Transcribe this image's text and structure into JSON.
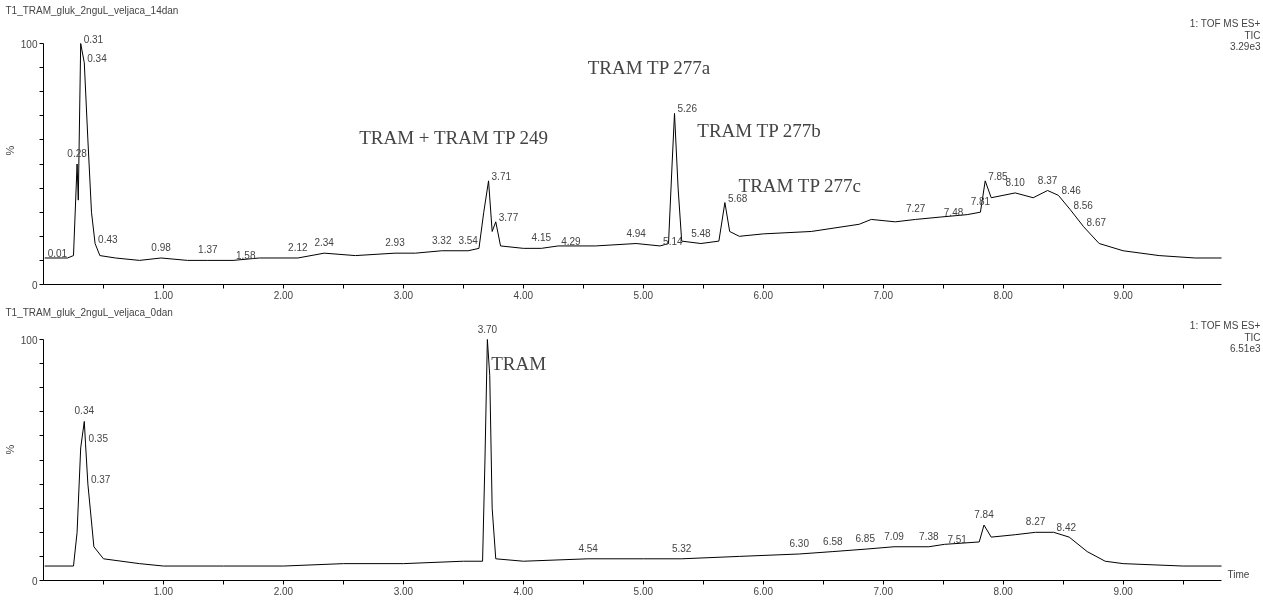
{
  "chart_data": [
    {
      "type": "line",
      "title": "T1_TRAM_gluk_2nguL_veljaca_14dan",
      "ylabel": "%",
      "grid": false,
      "xlim": [
        0,
        9.82
      ],
      "ylim": [
        0,
        100
      ],
      "xticks": [
        {
          "value": 0.5,
          "label": null
        },
        {
          "value": 1,
          "label": "1.00"
        },
        {
          "value": 1.5,
          "label": null
        },
        {
          "value": 2,
          "label": "2.00"
        },
        {
          "value": 2.5,
          "label": null
        },
        {
          "value": 3,
          "label": "3.00"
        },
        {
          "value": 3.5,
          "label": null
        },
        {
          "value": 4,
          "label": "4.00"
        },
        {
          "value": 4.5,
          "label": null
        },
        {
          "value": 5,
          "label": "5.00"
        },
        {
          "value": 5.5,
          "label": null
        },
        {
          "value": 6,
          "label": "6.00"
        },
        {
          "value": 6.5,
          "label": null
        },
        {
          "value": 7,
          "label": "7.00"
        },
        {
          "value": 7.5,
          "label": null
        },
        {
          "value": 8,
          "label": "8.00"
        },
        {
          "value": 8.5,
          "label": null
        },
        {
          "value": 9,
          "label": "9.00"
        },
        {
          "value": 9.5,
          "label": null
        }
      ],
      "yticks": [
        0,
        {
          "value": 10,
          "label": null
        },
        {
          "value": 20,
          "label": null
        },
        {
          "value": 30,
          "label": null
        },
        {
          "value": 40,
          "label": null
        },
        {
          "value": 50,
          "label": null
        },
        {
          "value": 60,
          "label": null
        },
        {
          "value": 70,
          "label": null
        },
        {
          "value": 80,
          "label": null
        },
        {
          "value": 90,
          "label": null
        },
        100
      ],
      "series": [
        {
          "color": "#000000",
          "x": [
            0.01,
            0.2,
            0.25,
            0.28,
            0.29,
            0.31,
            0.34,
            0.37,
            0.4,
            0.43,
            0.47,
            0.6,
            0.8,
            0.98,
            1.2,
            1.37,
            1.58,
            1.8,
            2.12,
            2.34,
            2.6,
            2.93,
            3.1,
            3.32,
            3.54,
            3.63,
            3.67,
            3.71,
            3.74,
            3.77,
            3.81,
            4.0,
            4.15,
            4.29,
            4.6,
            4.94,
            5.14,
            5.21,
            5.24,
            5.26,
            5.29,
            5.32,
            5.48,
            5.63,
            5.68,
            5.72,
            5.8,
            6.0,
            6.4,
            6.8,
            6.9,
            7.1,
            7.27,
            7.48,
            7.7,
            7.81,
            7.85,
            7.9,
            8.1,
            8.25,
            8.37,
            8.46,
            8.56,
            8.67,
            8.8,
            9.0,
            9.3,
            9.6,
            9.82
          ],
          "values": [
            11,
            11,
            12,
            50,
            35,
            100,
            92,
            60,
            30,
            17,
            12,
            11,
            10,
            11,
            10,
            10,
            10,
            11,
            11,
            13,
            12,
            13,
            13,
            14,
            14,
            15,
            30,
            43,
            22,
            26,
            16,
            15,
            15,
            16,
            16,
            17,
            16,
            17,
            50,
            71,
            40,
            18,
            17,
            18,
            34,
            22,
            20,
            21,
            22,
            25,
            27,
            26,
            27,
            28,
            29,
            30,
            43,
            36,
            38,
            36,
            39,
            37,
            31,
            24,
            17,
            14,
            12,
            11,
            11
          ]
        }
      ],
      "annotations": [
        "1: TOF MS ES+",
        "TIC",
        "3.29e3",
        "TRAM TP 277a",
        "TRAM + TRAM TP 249",
        "TRAM TP 277b",
        "TRAM TP 277c",
        {
          "text": "0.01",
          "x": 0.01,
          "y": 11
        },
        {
          "text": "0.28",
          "x": 0.28,
          "y": 50
        },
        {
          "text": "0.31",
          "x": 0.31,
          "y": 100
        },
        {
          "text": "0.34",
          "x": 0.34,
          "y": 92
        },
        {
          "text": "0.43",
          "x": 0.43,
          "y": 17
        },
        {
          "text": "0.98",
          "x": 0.98,
          "y": 11
        },
        {
          "text": "1.37",
          "x": 1.37,
          "y": 10
        },
        {
          "text": "1.58",
          "x": 1.58,
          "y": 10
        },
        {
          "text": "2.12",
          "x": 2.12,
          "y": 11
        },
        {
          "text": "2.34",
          "x": 2.34,
          "y": 13
        },
        {
          "text": "2.93",
          "x": 2.93,
          "y": 13
        },
        {
          "text": "3.32",
          "x": 3.32,
          "y": 14
        },
        {
          "text": "3.54",
          "x": 3.54,
          "y": 14
        },
        {
          "text": "3.71",
          "x": 3.71,
          "y": 43
        },
        {
          "text": "3.77",
          "x": 3.77,
          "y": 26
        },
        {
          "text": "4.15",
          "x": 4.15,
          "y": 15
        },
        {
          "text": "4.29",
          "x": 4.29,
          "y": 16
        },
        {
          "text": "4.94",
          "x": 4.94,
          "y": 17
        },
        {
          "text": "5.14",
          "x": 5.14,
          "y": 16
        },
        {
          "text": "5.26",
          "x": 5.26,
          "y": 71
        },
        {
          "text": "5.48",
          "x": 5.48,
          "y": 17
        },
        {
          "text": "5.68",
          "x": 5.68,
          "y": 34
        },
        {
          "text": "7.27",
          "x": 7.27,
          "y": 27
        },
        {
          "text": "7.48",
          "x": 7.48,
          "y": 28
        },
        {
          "text": "7.81",
          "x": 7.81,
          "y": 30
        },
        {
          "text": "7.85",
          "x": 7.85,
          "y": 43
        },
        {
          "text": "8.10",
          "x": 8.1,
          "y": 38
        },
        {
          "text": "8.37",
          "x": 8.37,
          "y": 39
        },
        {
          "text": "8.46",
          "x": 8.46,
          "y": 37
        },
        {
          "text": "8.56",
          "x": 8.56,
          "y": 31
        },
        {
          "text": "8.67",
          "x": 8.67,
          "y": 24
        }
      ]
    },
    {
      "type": "line",
      "title": "T1_TRAM_gluk_2nguL_veljaca_0dan",
      "ylabel": "%",
      "xlabel": "Time",
      "grid": false,
      "xlim": [
        0,
        9.82
      ],
      "ylim": [
        0,
        100
      ],
      "xticks": [
        {
          "value": 0.5,
          "label": null
        },
        {
          "value": 1,
          "label": "1.00"
        },
        {
          "value": 1.5,
          "label": null
        },
        {
          "value": 2,
          "label": "2.00"
        },
        {
          "value": 2.5,
          "label": null
        },
        {
          "value": 3,
          "label": "3.00"
        },
        {
          "value": 3.5,
          "label": null
        },
        {
          "value": 4,
          "label": "4.00"
        },
        {
          "value": 4.5,
          "label": null
        },
        {
          "value": 5,
          "label": "5.00"
        },
        {
          "value": 5.5,
          "label": null
        },
        {
          "value": 6,
          "label": "6.00"
        },
        {
          "value": 6.5,
          "label": null
        },
        {
          "value": 7,
          "label": "7.00"
        },
        {
          "value": 7.5,
          "label": null
        },
        {
          "value": 8,
          "label": "8.00"
        },
        {
          "value": 8.5,
          "label": null
        },
        {
          "value": 9,
          "label": "9.00"
        },
        {
          "value": 9.5,
          "label": null
        }
      ],
      "yticks": [
        0,
        {
          "value": 10,
          "label": null
        },
        {
          "value": 20,
          "label": null
        },
        {
          "value": 30,
          "label": null
        },
        {
          "value": 40,
          "label": null
        },
        {
          "value": 50,
          "label": null
        },
        {
          "value": 60,
          "label": null
        },
        {
          "value": 70,
          "label": null
        },
        {
          "value": 80,
          "label": null
        },
        {
          "value": 90,
          "label": null
        },
        100
      ],
      "series": [
        {
          "color": "#000000",
          "x": [
            0.01,
            0.25,
            0.28,
            0.31,
            0.34,
            0.35,
            0.37,
            0.42,
            0.5,
            0.8,
            1.0,
            1.5,
            2.0,
            2.5,
            3.0,
            3.5,
            3.66,
            3.68,
            3.7,
            3.72,
            3.74,
            3.77,
            4.0,
            4.54,
            5.0,
            5.32,
            5.8,
            6.3,
            6.58,
            6.85,
            7.09,
            7.38,
            7.51,
            7.8,
            7.84,
            7.9,
            8.1,
            8.27,
            8.42,
            8.55,
            8.7,
            8.85,
            9.0,
            9.5,
            9.82
          ],
          "values": [
            6,
            6,
            20,
            55,
            66,
            57,
            40,
            14,
            9,
            7,
            6,
            6,
            6,
            7,
            7,
            8,
            8,
            50,
            100,
            85,
            30,
            9,
            8,
            9,
            9,
            9,
            10,
            11,
            12,
            13,
            14,
            14,
            15,
            16,
            23,
            18,
            19,
            20,
            20,
            18,
            12,
            8,
            7,
            6,
            6
          ]
        }
      ],
      "annotations": [
        "1: TOF MS ES+",
        "TIC",
        "6.51e3",
        "TRAM",
        {
          "text": "0.34",
          "x": 0.34,
          "y": 66
        },
        {
          "text": "0.35",
          "x": 0.35,
          "y": 57
        },
        {
          "text": "0.37",
          "x": 0.37,
          "y": 40
        },
        {
          "text": "3.70",
          "x": 3.7,
          "y": 100
        },
        {
          "text": "4.54",
          "x": 4.54,
          "y": 9
        },
        {
          "text": "5.32",
          "x": 5.32,
          "y": 9
        },
        {
          "text": "6.30",
          "x": 6.3,
          "y": 11
        },
        {
          "text": "6.58",
          "x": 6.58,
          "y": 12
        },
        {
          "text": "6.85",
          "x": 6.85,
          "y": 13
        },
        {
          "text": "7.09",
          "x": 7.09,
          "y": 14
        },
        {
          "text": "7.38",
          "x": 7.38,
          "y": 14
        },
        {
          "text": "7.51",
          "x": 7.51,
          "y": 15
        },
        {
          "text": "7.84",
          "x": 7.84,
          "y": 23
        },
        {
          "text": "8.27",
          "x": 8.27,
          "y": 20
        },
        {
          "text": "8.42",
          "x": 8.42,
          "y": 20
        }
      ]
    }
  ]
}
